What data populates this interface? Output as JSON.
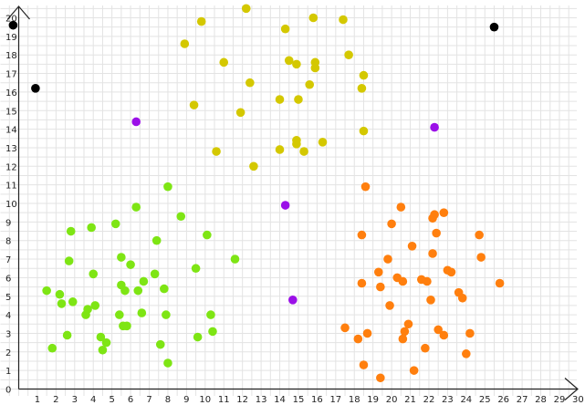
{
  "chart_data": {
    "type": "scatter",
    "title": "",
    "xlabel": "",
    "ylabel": "",
    "xlim": [
      0,
      30
    ],
    "ylim": [
      0,
      21
    ],
    "grid": true,
    "x_ticks": [
      1,
      2,
      3,
      4,
      5,
      6,
      7,
      8,
      9,
      10,
      11,
      12,
      13,
      14,
      15,
      16,
      17,
      18,
      19,
      20,
      21,
      22,
      23,
      24,
      25,
      26,
      27,
      28,
      29,
      30
    ],
    "y_ticks": [
      1,
      2,
      3,
      4,
      5,
      6,
      7,
      8,
      9,
      10,
      11,
      12,
      13,
      14,
      15,
      16,
      17,
      18,
      19,
      20
    ],
    "origin_label": "0",
    "series": [
      {
        "color": "#7ee514",
        "points": [
          [
            1.5,
            5.3
          ],
          [
            2.2,
            5.1
          ],
          [
            2.3,
            4.6
          ],
          [
            2.7,
            6.9
          ],
          [
            2.9,
            4.7
          ],
          [
            2.8,
            8.5
          ],
          [
            3.7,
            4.3
          ],
          [
            3.6,
            4.0
          ],
          [
            3.9,
            8.7
          ],
          [
            4.0,
            6.2
          ],
          [
            4.1,
            4.5
          ],
          [
            4.4,
            2.8
          ],
          [
            4.5,
            2.1
          ],
          [
            4.7,
            2.5
          ],
          [
            5.2,
            8.9
          ],
          [
            5.5,
            5.6
          ],
          [
            5.7,
            5.3
          ],
          [
            5.4,
            4.0
          ],
          [
            5.5,
            7.1
          ],
          [
            5.8,
            3.4
          ],
          [
            6.0,
            6.7
          ],
          [
            6.3,
            9.8
          ],
          [
            6.4,
            5.3
          ],
          [
            6.7,
            5.8
          ],
          [
            6.6,
            4.1
          ],
          [
            7.3,
            6.2
          ],
          [
            7.4,
            8.0
          ],
          [
            7.6,
            2.4
          ],
          [
            7.8,
            5.4
          ],
          [
            7.9,
            4.0
          ],
          [
            8.0,
            10.9
          ],
          [
            8.0,
            1.4
          ],
          [
            8.7,
            9.3
          ],
          [
            9.5,
            6.5
          ],
          [
            9.6,
            2.8
          ],
          [
            10.1,
            8.3
          ],
          [
            10.3,
            4.0
          ],
          [
            10.4,
            3.1
          ],
          [
            11.6,
            7.0
          ],
          [
            1.8,
            2.2
          ],
          [
            2.6,
            2.9
          ],
          [
            5.6,
            3.4
          ]
        ]
      },
      {
        "color": "#d4c800",
        "points": [
          [
            9.8,
            19.8
          ],
          [
            8.9,
            18.6
          ],
          [
            11.0,
            17.6
          ],
          [
            12.2,
            20.5
          ],
          [
            12.4,
            16.5
          ],
          [
            11.9,
            14.9
          ],
          [
            10.6,
            12.8
          ],
          [
            9.4,
            15.3
          ],
          [
            12.6,
            12.0
          ],
          [
            14.3,
            19.4
          ],
          [
            14.5,
            17.7
          ],
          [
            14.9,
            17.5
          ],
          [
            15.0,
            15.6
          ],
          [
            14.9,
            13.4
          ],
          [
            14.9,
            13.2
          ],
          [
            14.0,
            15.6
          ],
          [
            14.0,
            12.9
          ],
          [
            15.3,
            12.8
          ],
          [
            15.6,
            16.4
          ],
          [
            15.8,
            20.0
          ],
          [
            15.9,
            17.6
          ],
          [
            15.9,
            17.3
          ],
          [
            16.3,
            13.3
          ],
          [
            17.4,
            19.9
          ],
          [
            17.7,
            18.0
          ],
          [
            18.5,
            16.9
          ],
          [
            18.4,
            16.2
          ],
          [
            18.5,
            13.9
          ]
        ]
      },
      {
        "color": "#ff7f0e",
        "points": [
          [
            17.5,
            3.3
          ],
          [
            18.2,
            2.7
          ],
          [
            18.4,
            5.7
          ],
          [
            18.4,
            8.3
          ],
          [
            18.5,
            1.3
          ],
          [
            18.6,
            10.9
          ],
          [
            18.7,
            3.0
          ],
          [
            19.4,
            0.6
          ],
          [
            19.3,
            6.3
          ],
          [
            19.4,
            5.5
          ],
          [
            19.8,
            7.0
          ],
          [
            19.9,
            4.5
          ],
          [
            20.0,
            8.9
          ],
          [
            20.3,
            6.0
          ],
          [
            20.5,
            9.8
          ],
          [
            20.6,
            5.8
          ],
          [
            20.6,
            2.7
          ],
          [
            20.7,
            3.1
          ],
          [
            20.9,
            3.5
          ],
          [
            21.1,
            7.7
          ],
          [
            21.2,
            1.0
          ],
          [
            21.6,
            5.9
          ],
          [
            21.8,
            2.2
          ],
          [
            21.9,
            5.8
          ],
          [
            22.1,
            4.8
          ],
          [
            22.2,
            7.3
          ],
          [
            22.2,
            9.2
          ],
          [
            22.3,
            9.4
          ],
          [
            22.4,
            8.4
          ],
          [
            22.5,
            3.2
          ],
          [
            22.8,
            9.5
          ],
          [
            22.8,
            2.9
          ],
          [
            23.0,
            6.4
          ],
          [
            23.2,
            6.3
          ],
          [
            23.6,
            5.2
          ],
          [
            23.8,
            4.9
          ],
          [
            24.0,
            1.9
          ],
          [
            24.2,
            3.0
          ],
          [
            24.7,
            8.3
          ],
          [
            24.8,
            7.1
          ],
          [
            25.8,
            5.7
          ]
        ]
      },
      {
        "color": "#9b10e8",
        "points": [
          [
            6.3,
            14.4
          ],
          [
            14.3,
            9.9
          ],
          [
            14.7,
            4.8
          ],
          [
            22.3,
            14.1
          ]
        ]
      },
      {
        "color": "#000000",
        "points": [
          [
            -0.3,
            19.6
          ],
          [
            0.9,
            16.2
          ],
          [
            25.5,
            19.5
          ]
        ]
      }
    ]
  }
}
